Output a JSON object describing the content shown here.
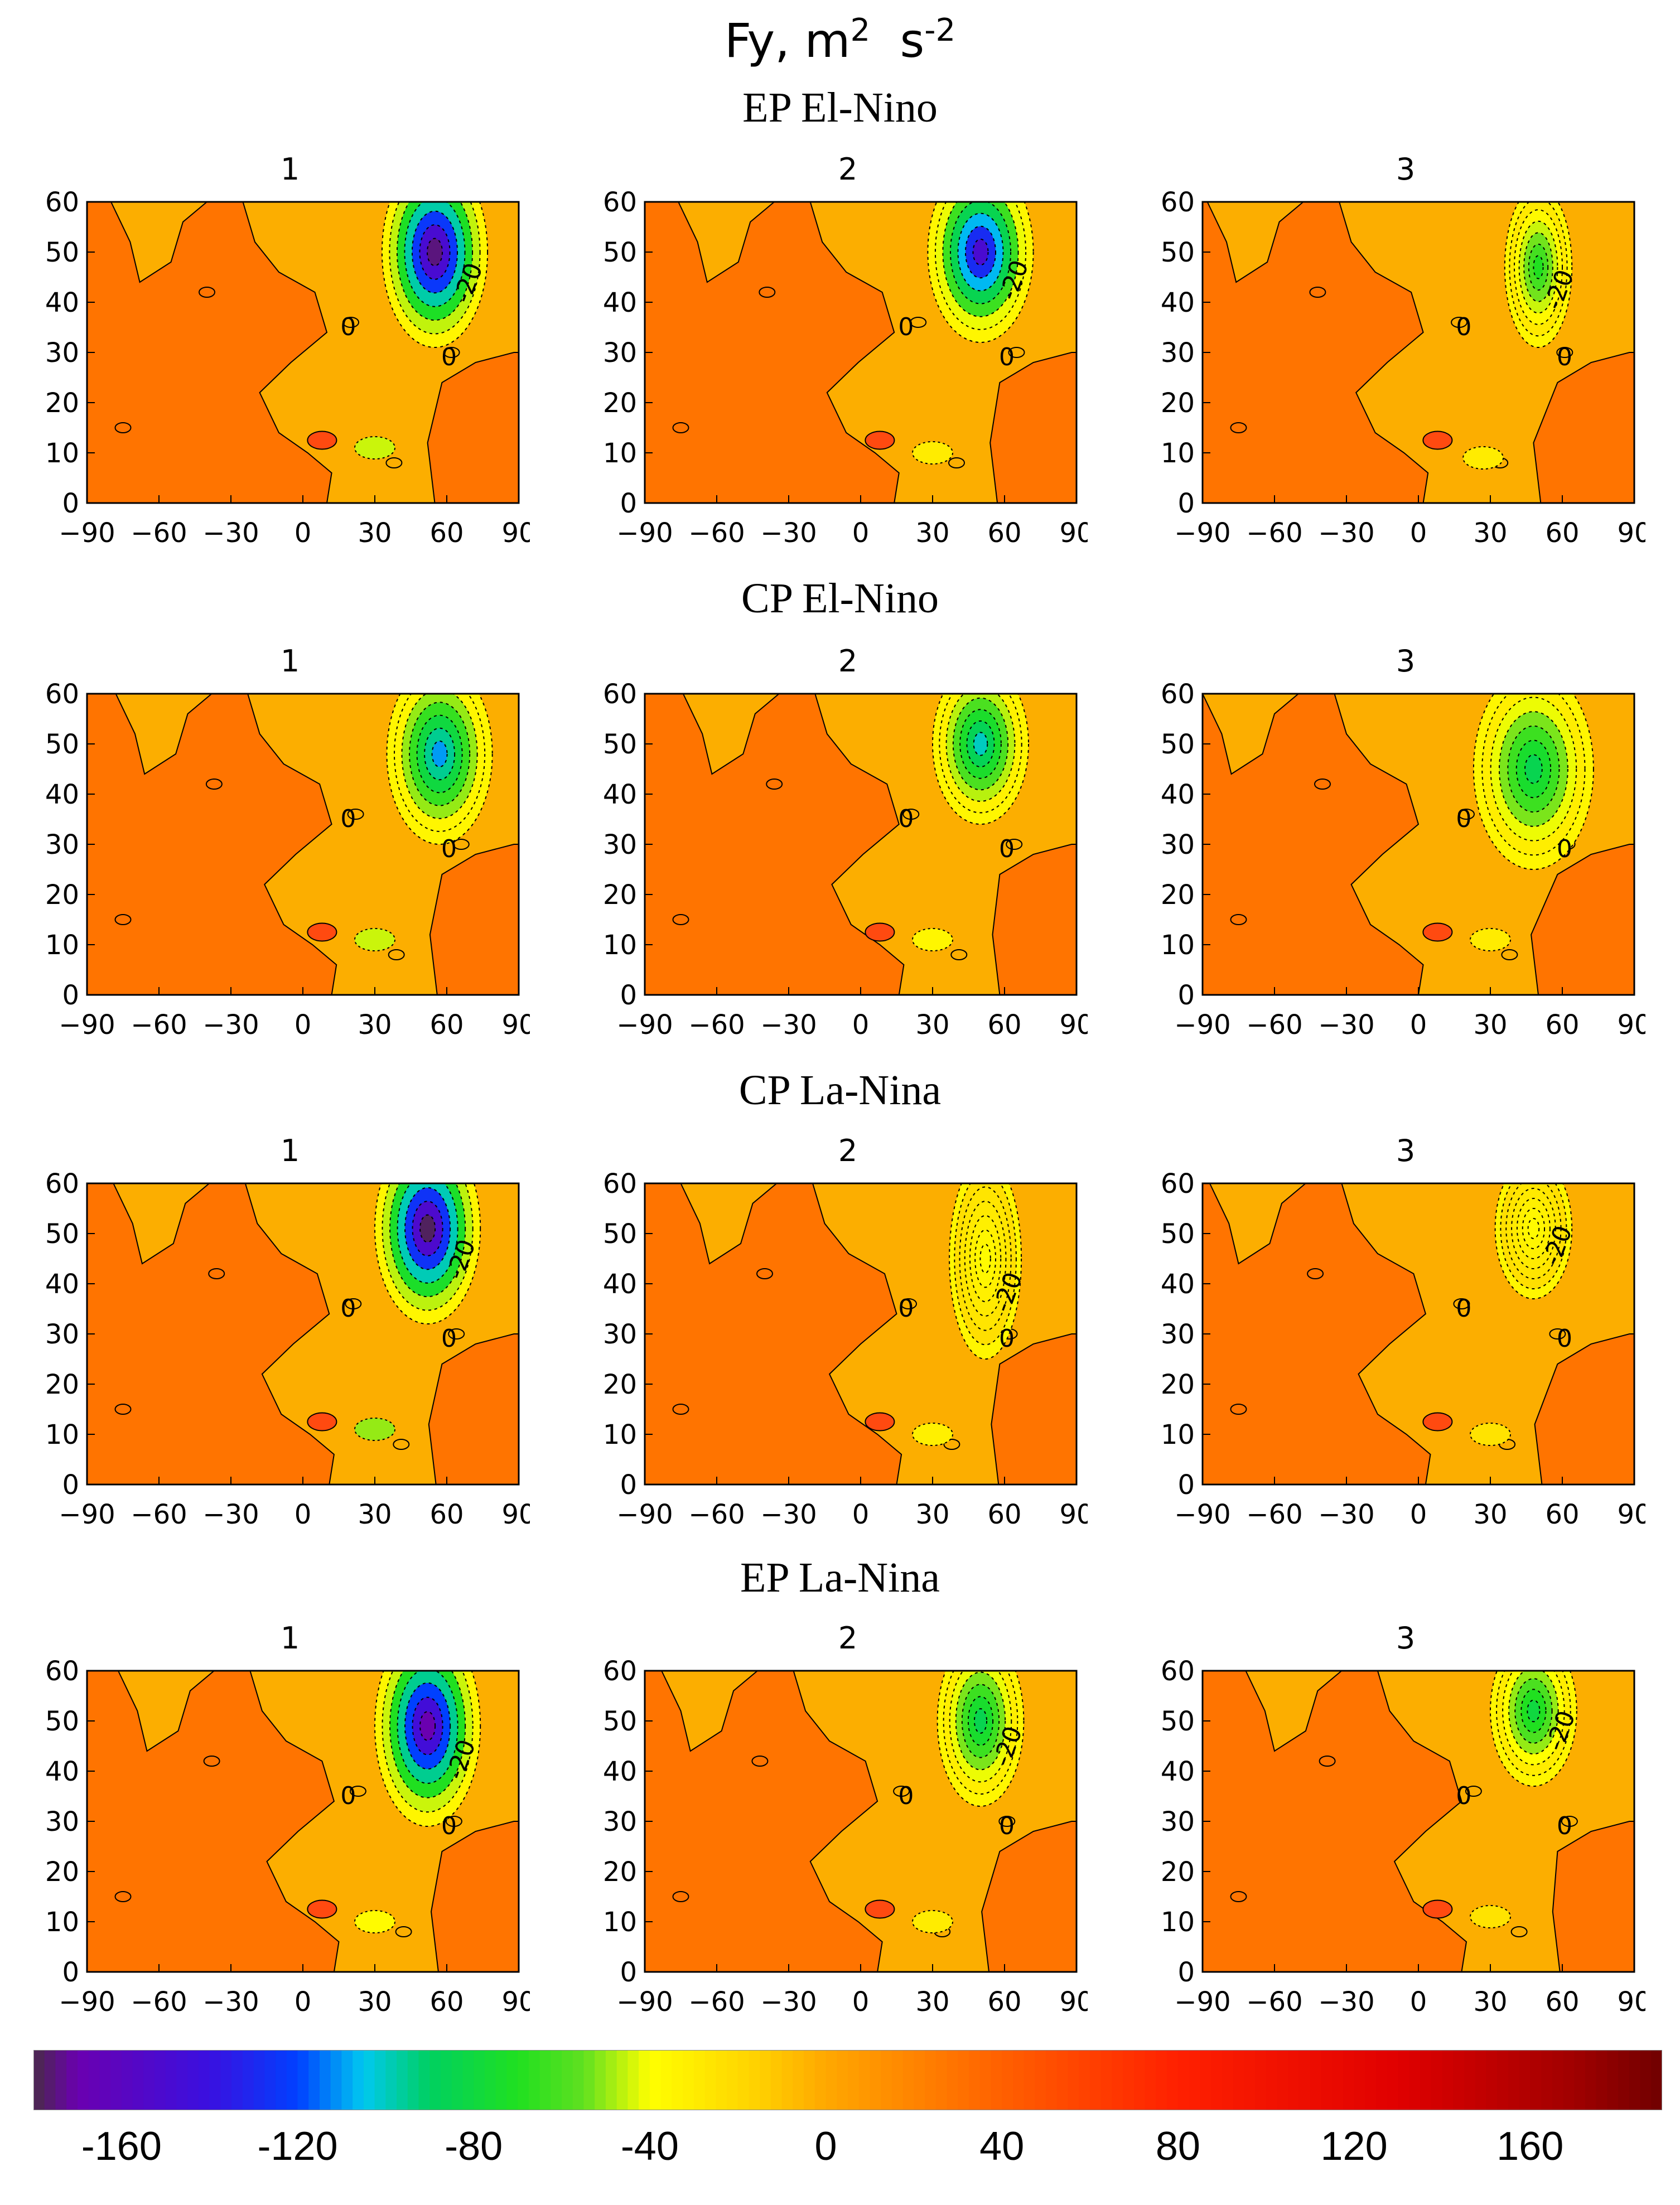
{
  "figure": {
    "title_main": "Fy, m",
    "title_exp1": "2",
    "title_mid": "s",
    "title_exp2": "-2"
  },
  "colors": {
    "background": "#fcae00",
    "negative_patch": "#ffd400",
    "positive_patch": "#ff7400",
    "contour_line": "#000000"
  },
  "chart_data": {
    "type": "heatmap",
    "title": "Fy, m2 s-2",
    "xlabel": "",
    "ylabel": "",
    "xlim": [
      -90,
      90
    ],
    "ylim": [
      0,
      60
    ],
    "x_ticks": [
      "-90",
      "-60",
      "-30",
      "0",
      "30",
      "60",
      "90"
    ],
    "y_ticks": [
      "0",
      "10",
      "20",
      "30",
      "40",
      "50",
      "60"
    ],
    "contour_label": "-20",
    "zero_label": "0",
    "colorbar": {
      "range": [
        -180,
        190
      ],
      "tick_labels": [
        "-160",
        "-120",
        "-80",
        "-40",
        "0",
        "40",
        "80",
        "120",
        "160"
      ],
      "stops": [
        {
          "v": -180,
          "c": "#4a2a4a"
        },
        {
          "v": -170,
          "c": "#6a00b0"
        },
        {
          "v": -140,
          "c": "#3a10e0"
        },
        {
          "v": -120,
          "c": "#0040ff"
        },
        {
          "v": -105,
          "c": "#00c8f0"
        },
        {
          "v": -90,
          "c": "#00d060"
        },
        {
          "v": -70,
          "c": "#20e020"
        },
        {
          "v": -55,
          "c": "#60e020"
        },
        {
          "v": -40,
          "c": "#ffff00"
        },
        {
          "v": -15,
          "c": "#ffd000"
        },
        {
          "v": 0,
          "c": "#ffa800"
        },
        {
          "v": 40,
          "c": "#ff6000"
        },
        {
          "v": 80,
          "c": "#ff2000"
        },
        {
          "v": 130,
          "c": "#e00000"
        },
        {
          "v": 170,
          "c": "#a00000"
        },
        {
          "v": 190,
          "c": "#700000"
        }
      ]
    },
    "groups": [
      {
        "name": "EP El-Nino",
        "panels": [
          {
            "label": "1",
            "cx": 55,
            "cy": 50,
            "rx": 22,
            "ry": 19,
            "peak": -175,
            "eq": -45,
            "eqx": 30,
            "eqy": 11,
            "shift": 0
          },
          {
            "label": "2",
            "cx": 50,
            "cy": 50,
            "rx": 22,
            "ry": 18,
            "peak": -150,
            "eq": -30,
            "eqx": 30,
            "eqy": 10,
            "shift": 4
          },
          {
            "label": "3",
            "cx": 50,
            "cy": 47,
            "rx": 14,
            "ry": 16,
            "peak": -70,
            "eq": -30,
            "eqx": 27,
            "eqy": 9,
            "shift": -8
          }
        ]
      },
      {
        "name": "CP El-Nino",
        "panels": [
          {
            "label": "1",
            "cx": 57,
            "cy": 48,
            "rx": 22,
            "ry": 18,
            "peak": -110,
            "eq": -45,
            "eqx": 30,
            "eqy": 11,
            "shift": 2
          },
          {
            "label": "2",
            "cx": 50,
            "cy": 50,
            "rx": 20,
            "ry": 16,
            "peak": -100,
            "eq": -35,
            "eqx": 30,
            "eqy": 11,
            "shift": 6
          },
          {
            "label": "3",
            "cx": 48,
            "cy": 45,
            "rx": 25,
            "ry": 20,
            "peak": -85,
            "eq": -30,
            "eqx": 30,
            "eqy": 11,
            "shift": -10
          }
        ]
      },
      {
        "name": "CP La-Nina",
        "panels": [
          {
            "label": "1",
            "cx": 52,
            "cy": 51,
            "rx": 22,
            "ry": 19,
            "peak": -178,
            "eq": -50,
            "eqx": 30,
            "eqy": 11,
            "shift": 1
          },
          {
            "label": "2",
            "cx": 52,
            "cy": 45,
            "rx": 15,
            "ry": 20,
            "peak": -38,
            "eq": -32,
            "eqx": 30,
            "eqy": 10,
            "shift": 5
          },
          {
            "label": "3",
            "cx": 48,
            "cy": 51,
            "rx": 16,
            "ry": 14,
            "peak": -38,
            "eq": -25,
            "eqx": 30,
            "eqy": 10,
            "shift": -7
          }
        ]
      },
      {
        "name": "EP La-Nina",
        "panels": [
          {
            "label": "1",
            "cx": 52,
            "cy": 49,
            "rx": 22,
            "ry": 20,
            "peak": -170,
            "eq": -38,
            "eqx": 30,
            "eqy": 10,
            "shift": 3
          },
          {
            "label": "2",
            "cx": 50,
            "cy": 50,
            "rx": 18,
            "ry": 17,
            "peak": -85,
            "eq": -30,
            "eqx": 30,
            "eqy": 10,
            "shift": -3
          },
          {
            "label": "3",
            "cx": 48,
            "cy": 52,
            "rx": 18,
            "ry": 15,
            "peak": -80,
            "eq": -25,
            "eqx": 30,
            "eqy": 11,
            "shift": 8
          }
        ]
      }
    ]
  }
}
